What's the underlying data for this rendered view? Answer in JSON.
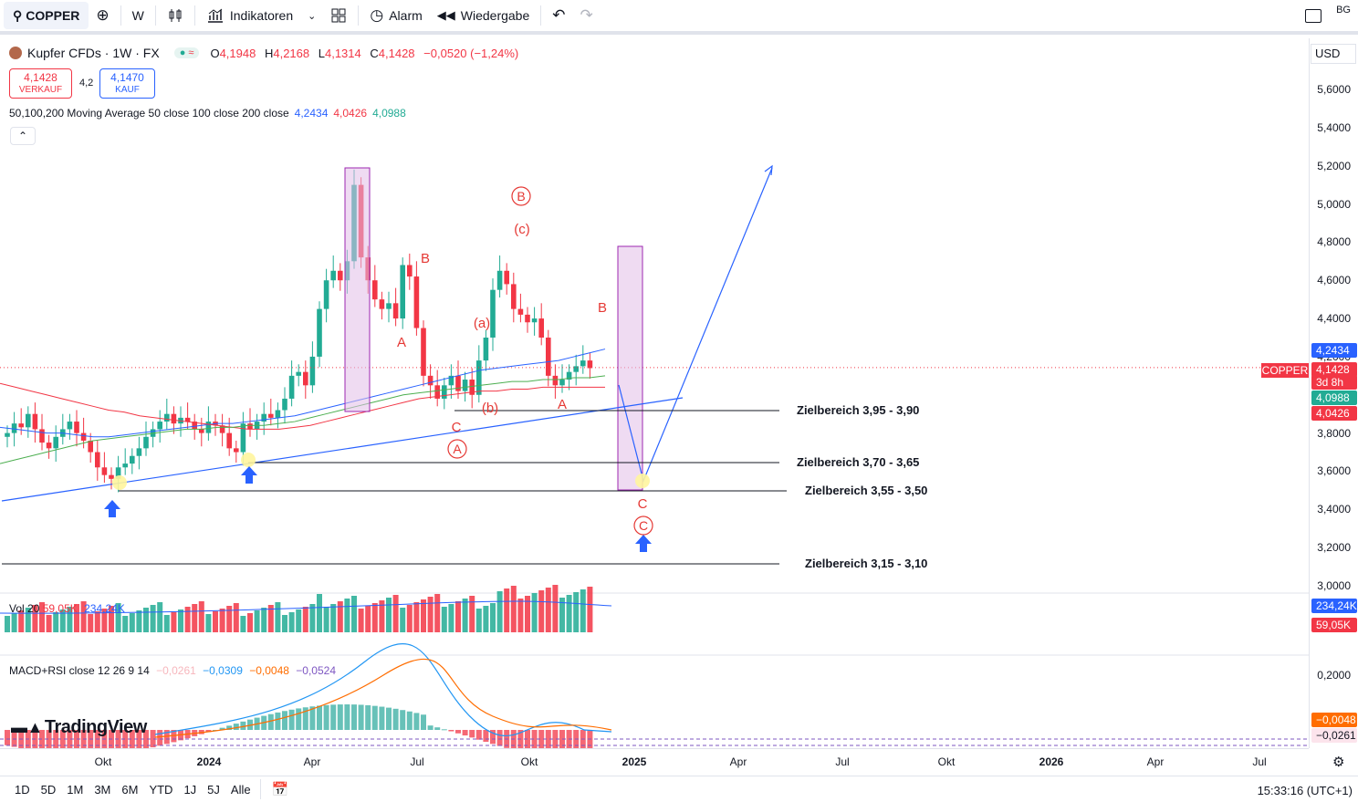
{
  "toolbar": {
    "symbol": "COPPER",
    "interval": "W",
    "indicators_label": "Indikatoren",
    "alert_label": "Alarm",
    "replay_label": "Wiedergabe",
    "right_badge": "BG"
  },
  "legend": {
    "title": "Kupfer CFDs · 1W · FX",
    "o_label": "O",
    "o_val": "4,1948",
    "h_label": "H",
    "h_val": "4,2168",
    "l_label": "L",
    "l_val": "4,1314",
    "c_label": "C",
    "c_val": "4,1428",
    "change": "−0,0520 (−1,24%)",
    "sell_price": "4,1428",
    "sell_label": "VERKAUF",
    "spread": "4,2",
    "buy_price": "4,1470",
    "buy_label": "KAUF",
    "ma_text": "50,100,200 Moving Average 50 close 100 close 200 close",
    "ma50": "4,2434",
    "ma100": "4,0426",
    "ma200": "4,0988"
  },
  "price_axis": {
    "currency": "USD",
    "ticks": [
      "5,6000",
      "5,4000",
      "5,2000",
      "5,0000",
      "4,8000",
      "4,6000",
      "4,4000",
      "4,2000",
      "4,0000",
      "3,8000",
      "3,6000",
      "3,4000",
      "3,2000",
      "3,0000"
    ],
    "labels": {
      "ma50": "4,2434",
      "symbol_tag": "COPPER",
      "last": "4,1428",
      "countdown": "3d 8h",
      "ma200": "4,0988",
      "ma100": "4,0426",
      "vol_ma": "234,24K",
      "vol": "59,05K",
      "macd_tick": "0,2000",
      "macd_signal": "−0,0048",
      "macd_hist": "−0,0261"
    }
  },
  "time_axis": {
    "ticks": [
      "Okt",
      "2024",
      "Apr",
      "Jul",
      "Okt",
      "2025",
      "Apr",
      "Jul",
      "Okt",
      "2026",
      "Apr",
      "Jul"
    ]
  },
  "annotations": {
    "zones": [
      "Zielbereich 3,95 - 3,90",
      "Zielbereich 3,70 - 3,65",
      "Zielbereich 3,55 - 3,50",
      "Zielbereich 3,15 - 3,10"
    ],
    "waves": {
      "A1": "A",
      "B1": "B",
      "C1": "C",
      "a": "(a)",
      "b": "(b)",
      "c": "(c)",
      "A2": "A",
      "B2": "B",
      "C2": "C",
      "circA": "A",
      "circB": "B",
      "circC": "C"
    }
  },
  "volume_pane": {
    "label": "Vol 20",
    "vol": "59,05K",
    "vol_ma": "234,24K"
  },
  "macd_pane": {
    "label": "MACD+RSI close 12 26 9 14",
    "v1": "−0,0261",
    "v2": "−0,0309",
    "v3": "−0,0048",
    "v4": "−0,0524"
  },
  "logo": "TradingView",
  "bottombar": {
    "ranges": [
      "1D",
      "5D",
      "1M",
      "3M",
      "6M",
      "YTD",
      "1J",
      "5J",
      "Alle"
    ],
    "clock": "15:33:16 (UTC+1)"
  },
  "colors": {
    "up": "#22ab94",
    "down": "#f23645",
    "ma50": "#2962ff",
    "ma100": "#f23645",
    "ma200": "#4caf50",
    "zone": "#e1bee7"
  },
  "chart_data": {
    "type": "candlestick",
    "weekly_closes": [
      3.8,
      3.85,
      3.83,
      3.9,
      3.82,
      3.75,
      3.72,
      3.78,
      3.82,
      3.86,
      3.8,
      3.76,
      3.7,
      3.62,
      3.58,
      3.56,
      3.62,
      3.64,
      3.68,
      3.72,
      3.78,
      3.82,
      3.86,
      3.9,
      3.85,
      3.88,
      3.86,
      3.82,
      3.8,
      3.86,
      3.84,
      3.8,
      3.72,
      3.7,
      3.85,
      3.82,
      3.86,
      3.9,
      3.88,
      3.92,
      3.98,
      4.1,
      4.12,
      4.05,
      4.2,
      4.45,
      4.6,
      4.65,
      4.6,
      4.7,
      5.1,
      4.72,
      4.6,
      4.5,
      4.45,
      4.48,
      4.4,
      4.68,
      4.62,
      4.35,
      4.1,
      4.05,
      3.98,
      4.05,
      4.1,
      4.02,
      4.08,
      4.0,
      4.18,
      4.3,
      4.55,
      4.65,
      4.58,
      4.45,
      4.42,
      4.38,
      4.4,
      4.3,
      4.1,
      4.05,
      4.08,
      4.12,
      4.15,
      4.18,
      4.14
    ]
  }
}
